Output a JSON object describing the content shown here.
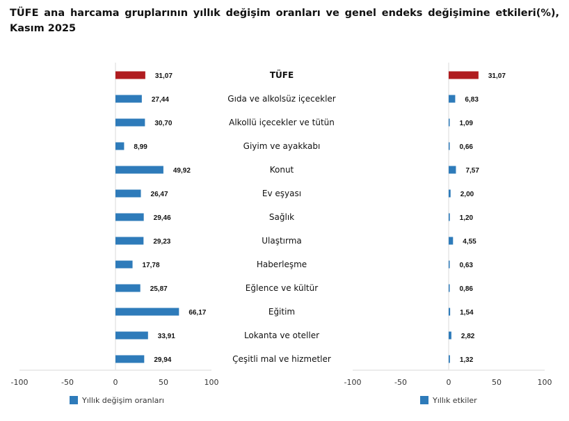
{
  "chart_data": [
    {
      "type": "bar",
      "orientation": "horizontal",
      "title": "TÜFE ana harcama gruplarının yıllık değişim oranları ve genel endeks değişimine etkileri(%), Kasım 2025",
      "categories": [
        "TÜFE",
        "Gıda ve alkolsüz içecekler",
        "Alkollü içecekler ve tütün",
        "Giyim ve ayakkabı",
        "Konut",
        "Ev eşyası",
        "Sağlık",
        "Ulaştırma",
        "Haberleşme",
        "Eğlence ve kültür",
        "Eğitim",
        "Lokanta ve oteller",
        "Çeşitli mal ve hizmetler"
      ],
      "series": [
        {
          "name": "Yıllık değişim oranları",
          "values": [
            31.07,
            27.44,
            30.7,
            8.99,
            49.92,
            26.47,
            29.46,
            29.23,
            17.78,
            25.87,
            66.17,
            33.91,
            29.94
          ]
        }
      ],
      "data_labels": [
        "31,07",
        "27,44",
        "30,70",
        "8,99",
        "49,92",
        "26,47",
        "29,46",
        "29,23",
        "17,78",
        "25,87",
        "66,17",
        "33,91",
        "29,94"
      ],
      "xlim": [
        -100,
        100
      ],
      "xticks": [
        "-100",
        "-50",
        "0",
        "50",
        "100"
      ],
      "legend": "bottom-left",
      "grid": false,
      "colors": {
        "total": "#B01C1F",
        "series": "#2E7BBA"
      }
    },
    {
      "type": "bar",
      "orientation": "horizontal",
      "series": [
        {
          "name": "Yıllık etkiler",
          "values": [
            31.07,
            6.83,
            1.09,
            0.66,
            7.57,
            2.0,
            1.2,
            4.55,
            0.63,
            0.86,
            1.54,
            2.82,
            1.32
          ]
        }
      ],
      "data_labels": [
        "31,07",
        "6,83",
        "1,09",
        "0,66",
        "7,57",
        "2,00",
        "1,20",
        "4,55",
        "0,63",
        "0,86",
        "1,54",
        "2,82",
        "1,32"
      ],
      "xlim": [
        -100,
        100
      ],
      "xticks": [
        "-100",
        "-50",
        "0",
        "50",
        "100"
      ],
      "legend": "bottom-left",
      "grid": false,
      "colors": {
        "total": "#B01C1F",
        "series": "#2E7BBA"
      }
    }
  ]
}
